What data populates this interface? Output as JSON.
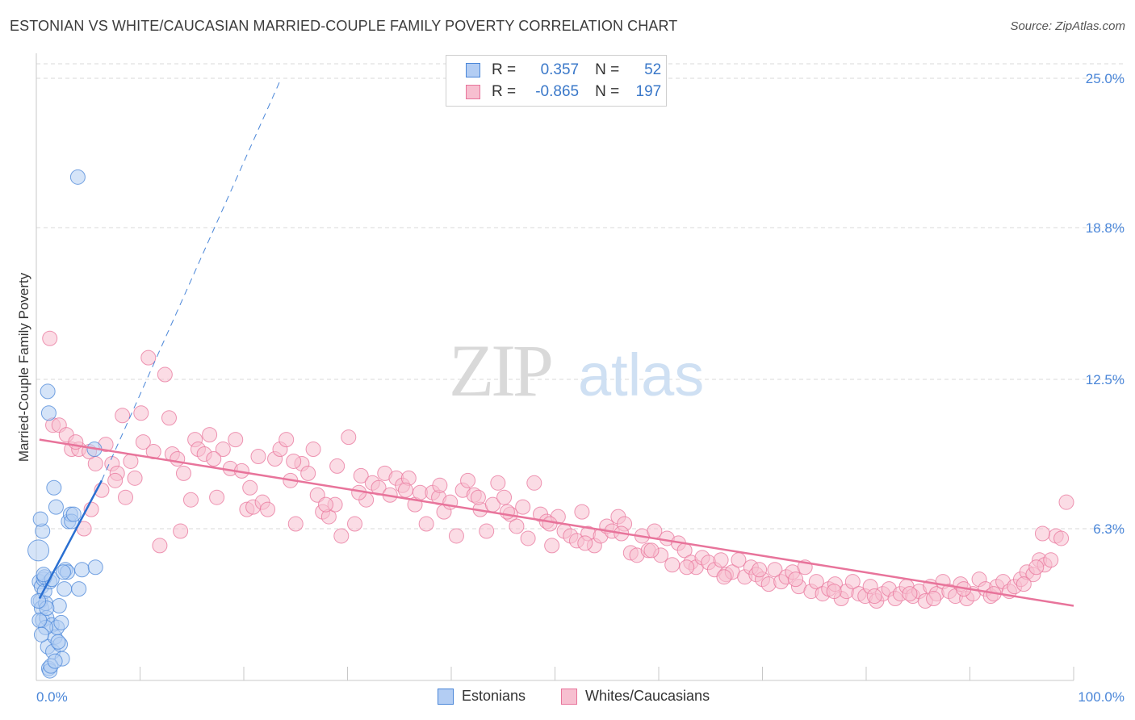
{
  "header": {
    "title": "ESTONIAN VS WHITE/CAUCASIAN MARRIED-COUPLE FAMILY POVERTY CORRELATION CHART",
    "source": "Source: ZipAtlas.com"
  },
  "watermark": {
    "zip": "ZIP",
    "atlas": "atlas"
  },
  "legend": {
    "rows": [
      {
        "r_label": "R =",
        "r_value": "0.357",
        "n_label": "N =",
        "n_value": "52",
        "color": "#4a86d8"
      },
      {
        "r_label": "R =",
        "r_value": "-0.865",
        "n_label": "N =",
        "n_value": "197",
        "color": "#e8749b"
      }
    ]
  },
  "bottom_legend": {
    "series1": "Estonians",
    "series2": "Whites/Caucasians"
  },
  "chart_data": {
    "type": "scatter",
    "title": "ESTONIAN VS WHITE/CAUCASIAN MARRIED-COUPLE FAMILY POVERTY CORRELATION CHART",
    "xlabel": "",
    "ylabel": "Married-Couple Family Poverty",
    "x_unit": "%",
    "xlim": [
      0,
      100
    ],
    "ylim": [
      0,
      25
    ],
    "x_tick_labels": [
      "0.0%",
      "100.0%"
    ],
    "y_ticks": [
      6.3,
      12.5,
      18.8,
      25.0
    ],
    "y_tick_labels": [
      "6.3%",
      "12.5%",
      "18.8%",
      "25.0%"
    ],
    "grid": true,
    "series": [
      {
        "name": "Estonians",
        "color": "#4a86d8",
        "fill": "#b3cdf3",
        "r": 0.357,
        "n": 52,
        "trend": {
          "x0": 0.3,
          "y0": 3.4,
          "x1": 6.3,
          "y1": 8.3,
          "dash_x1": 23.5,
          "dash_y1": 24.9
        },
        "points": [
          [
            0.2,
            5.4
          ],
          [
            0.3,
            4.1
          ],
          [
            0.4,
            3.3
          ],
          [
            0.5,
            3.9
          ],
          [
            0.5,
            3.0
          ],
          [
            0.6,
            2.5
          ],
          [
            0.7,
            4.2
          ],
          [
            0.8,
            3.7
          ],
          [
            0.9,
            3.2
          ],
          [
            1.0,
            2.6
          ],
          [
            1.1,
            1.4
          ],
          [
            1.2,
            0.5
          ],
          [
            1.3,
            4.1
          ],
          [
            1.5,
            2.3
          ],
          [
            1.6,
            1.2
          ],
          [
            1.7,
            8.0
          ],
          [
            1.8,
            1.8
          ],
          [
            1.9,
            7.2
          ],
          [
            2.0,
            2.2
          ],
          [
            2.2,
            3.1
          ],
          [
            2.3,
            1.5
          ],
          [
            2.4,
            2.4
          ],
          [
            2.5,
            0.9
          ],
          [
            2.7,
            3.8
          ],
          [
            2.8,
            4.6
          ],
          [
            3.0,
            4.5
          ],
          [
            3.1,
            6.6
          ],
          [
            3.3,
            6.9
          ],
          [
            3.4,
            6.6
          ],
          [
            3.6,
            6.9
          ],
          [
            4.1,
            3.8
          ],
          [
            4.0,
            20.9
          ],
          [
            4.4,
            4.6
          ],
          [
            5.7,
            4.7
          ],
          [
            5.6,
            9.6
          ],
          [
            1.3,
            0.4
          ],
          [
            1.4,
            0.6
          ],
          [
            0.9,
            2.2
          ],
          [
            0.6,
            6.2
          ],
          [
            0.4,
            6.7
          ],
          [
            1.1,
            12.0
          ],
          [
            1.2,
            11.1
          ],
          [
            0.8,
            4.3
          ],
          [
            1.5,
            4.2
          ],
          [
            0.7,
            4.4
          ],
          [
            0.3,
            2.5
          ],
          [
            1.0,
            3.0
          ],
          [
            2.1,
            1.6
          ],
          [
            0.5,
            1.9
          ],
          [
            1.8,
            0.8
          ],
          [
            2.6,
            4.5
          ],
          [
            0.2,
            3.3
          ]
        ]
      },
      {
        "name": "Whites/Caucasians",
        "color": "#e8749b",
        "fill": "#f7bfd0",
        "r": -0.865,
        "n": 197,
        "trend": {
          "x0": 0.3,
          "y0": 10.0,
          "x1": 100,
          "y1": 3.1
        },
        "points": [
          [
            1.3,
            14.2
          ],
          [
            1.6,
            10.6
          ],
          [
            2.2,
            10.6
          ],
          [
            2.9,
            10.2
          ],
          [
            3.4,
            9.6
          ],
          [
            4.1,
            9.6
          ],
          [
            4.6,
            6.3
          ],
          [
            5.3,
            7.1
          ],
          [
            5.7,
            9.0
          ],
          [
            6.3,
            7.9
          ],
          [
            6.7,
            9.8
          ],
          [
            7.3,
            9.0
          ],
          [
            7.8,
            8.6
          ],
          [
            8.6,
            7.6
          ],
          [
            8.3,
            11.0
          ],
          [
            9.1,
            9.1
          ],
          [
            9.5,
            8.4
          ],
          [
            10.1,
            11.1
          ],
          [
            10.8,
            13.4
          ],
          [
            11.3,
            9.5
          ],
          [
            11.9,
            5.6
          ],
          [
            12.4,
            12.7
          ],
          [
            12.8,
            10.9
          ],
          [
            13.1,
            9.4
          ],
          [
            13.6,
            9.2
          ],
          [
            14.2,
            8.6
          ],
          [
            14.9,
            7.5
          ],
          [
            15.3,
            10.0
          ],
          [
            15.6,
            9.6
          ],
          [
            16.2,
            9.4
          ],
          [
            16.7,
            10.2
          ],
          [
            17.4,
            7.6
          ],
          [
            18.0,
            9.6
          ],
          [
            18.7,
            8.8
          ],
          [
            19.2,
            10.0
          ],
          [
            19.8,
            8.7
          ],
          [
            20.3,
            7.1
          ],
          [
            20.9,
            7.2
          ],
          [
            21.4,
            9.3
          ],
          [
            21.8,
            7.4
          ],
          [
            22.3,
            7.1
          ],
          [
            23.0,
            9.2
          ],
          [
            23.5,
            9.6
          ],
          [
            24.1,
            10.0
          ],
          [
            24.5,
            8.3
          ],
          [
            25.0,
            6.5
          ],
          [
            25.6,
            9.0
          ],
          [
            26.2,
            8.6
          ],
          [
            26.7,
            9.6
          ],
          [
            27.1,
            7.7
          ],
          [
            27.6,
            7.0
          ],
          [
            28.2,
            6.8
          ],
          [
            28.8,
            7.3
          ],
          [
            29.4,
            6.0
          ],
          [
            29.0,
            8.9
          ],
          [
            30.1,
            10.1
          ],
          [
            30.7,
            6.5
          ],
          [
            31.3,
            8.5
          ],
          [
            31.8,
            7.5
          ],
          [
            32.4,
            8.2
          ],
          [
            33.0,
            8.0
          ],
          [
            33.6,
            8.6
          ],
          [
            34.1,
            7.7
          ],
          [
            34.7,
            8.4
          ],
          [
            35.3,
            8.1
          ],
          [
            35.9,
            8.4
          ],
          [
            36.5,
            7.3
          ],
          [
            37.0,
            7.8
          ],
          [
            37.6,
            6.5
          ],
          [
            38.2,
            7.8
          ],
          [
            38.8,
            7.6
          ],
          [
            39.3,
            7.0
          ],
          [
            39.9,
            7.4
          ],
          [
            40.5,
            6.0
          ],
          [
            41.1,
            7.9
          ],
          [
            41.6,
            8.3
          ],
          [
            42.2,
            7.7
          ],
          [
            42.8,
            7.1
          ],
          [
            43.4,
            6.2
          ],
          [
            44.0,
            7.3
          ],
          [
            44.5,
            8.2
          ],
          [
            45.1,
            7.6
          ],
          [
            45.7,
            6.9
          ],
          [
            46.3,
            6.4
          ],
          [
            46.9,
            7.2
          ],
          [
            47.4,
            5.9
          ],
          [
            48.0,
            8.2
          ],
          [
            48.6,
            6.9
          ],
          [
            49.2,
            6.6
          ],
          [
            49.7,
            5.6
          ],
          [
            50.3,
            6.8
          ],
          [
            50.9,
            6.2
          ],
          [
            51.5,
            6.0
          ],
          [
            52.1,
            5.8
          ],
          [
            52.6,
            7.0
          ],
          [
            53.2,
            6.1
          ],
          [
            53.8,
            5.6
          ],
          [
            54.4,
            6.0
          ],
          [
            55.0,
            6.4
          ],
          [
            55.5,
            6.2
          ],
          [
            56.1,
            6.8
          ],
          [
            56.7,
            6.5
          ],
          [
            57.3,
            5.3
          ],
          [
            57.9,
            5.2
          ],
          [
            58.4,
            6.0
          ],
          [
            59.0,
            5.4
          ],
          [
            59.6,
            6.2
          ],
          [
            60.2,
            5.2
          ],
          [
            60.8,
            5.9
          ],
          [
            61.3,
            4.8
          ],
          [
            61.9,
            5.7
          ],
          [
            62.5,
            5.4
          ],
          [
            63.1,
            4.9
          ],
          [
            63.6,
            4.7
          ],
          [
            64.2,
            5.1
          ],
          [
            64.8,
            4.9
          ],
          [
            65.4,
            4.6
          ],
          [
            66.0,
            5.0
          ],
          [
            66.5,
            4.4
          ],
          [
            67.1,
            4.5
          ],
          [
            67.7,
            5.0
          ],
          [
            68.3,
            4.3
          ],
          [
            68.9,
            4.7
          ],
          [
            69.4,
            4.4
          ],
          [
            70.0,
            4.2
          ],
          [
            70.6,
            4.0
          ],
          [
            71.2,
            4.6
          ],
          [
            71.8,
            4.1
          ],
          [
            72.3,
            4.3
          ],
          [
            72.9,
            4.5
          ],
          [
            73.5,
            3.9
          ],
          [
            74.1,
            4.7
          ],
          [
            74.7,
            3.7
          ],
          [
            75.2,
            4.1
          ],
          [
            75.8,
            3.6
          ],
          [
            76.4,
            3.8
          ],
          [
            77.0,
            4.0
          ],
          [
            77.6,
            3.4
          ],
          [
            78.1,
            3.7
          ],
          [
            78.7,
            4.1
          ],
          [
            79.3,
            3.6
          ],
          [
            79.9,
            3.5
          ],
          [
            80.4,
            3.9
          ],
          [
            81.0,
            3.3
          ],
          [
            81.6,
            3.6
          ],
          [
            82.2,
            3.8
          ],
          [
            82.8,
            3.4
          ],
          [
            83.3,
            3.6
          ],
          [
            83.9,
            3.9
          ],
          [
            84.5,
            3.5
          ],
          [
            85.1,
            3.7
          ],
          [
            85.7,
            3.3
          ],
          [
            86.2,
            3.9
          ],
          [
            86.8,
            3.6
          ],
          [
            87.4,
            4.1
          ],
          [
            88.0,
            3.7
          ],
          [
            88.6,
            3.5
          ],
          [
            89.1,
            4.0
          ],
          [
            89.7,
            3.4
          ],
          [
            90.3,
            3.6
          ],
          [
            90.9,
            4.2
          ],
          [
            91.5,
            3.8
          ],
          [
            92.0,
            3.5
          ],
          [
            92.6,
            3.9
          ],
          [
            93.2,
            4.1
          ],
          [
            93.8,
            3.7
          ],
          [
            94.3,
            3.9
          ],
          [
            94.9,
            4.2
          ],
          [
            95.5,
            4.5
          ],
          [
            96.1,
            4.4
          ],
          [
            96.7,
            5.0
          ],
          [
            97.2,
            4.8
          ],
          [
            97.8,
            5.0
          ],
          [
            98.3,
            6.0
          ],
          [
            98.8,
            5.9
          ],
          [
            99.3,
            7.4
          ],
          [
            97.0,
            6.1
          ],
          [
            96.4,
            4.7
          ],
          [
            95.2,
            4.0
          ],
          [
            92.3,
            3.6
          ],
          [
            89.4,
            3.8
          ],
          [
            86.5,
            3.4
          ],
          [
            84.2,
            3.6
          ],
          [
            80.8,
            3.5
          ],
          [
            76.9,
            3.7
          ],
          [
            73.2,
            4.2
          ],
          [
            69.7,
            4.6
          ],
          [
            66.3,
            4.3
          ],
          [
            62.7,
            4.7
          ],
          [
            59.3,
            5.4
          ],
          [
            56.4,
            6.1
          ],
          [
            52.9,
            5.7
          ],
          [
            49.5,
            6.5
          ],
          [
            45.4,
            7.0
          ],
          [
            42.6,
            7.6
          ],
          [
            38.9,
            8.1
          ],
          [
            35.6,
            7.9
          ],
          [
            31.1,
            7.8
          ],
          [
            27.9,
            7.3
          ],
          [
            24.8,
            9.1
          ],
          [
            20.6,
            8.0
          ],
          [
            17.1,
            9.2
          ],
          [
            13.9,
            6.2
          ],
          [
            10.3,
            9.9
          ],
          [
            7.6,
            8.3
          ],
          [
            5.1,
            9.5
          ],
          [
            3.8,
            9.9
          ]
        ]
      }
    ]
  }
}
